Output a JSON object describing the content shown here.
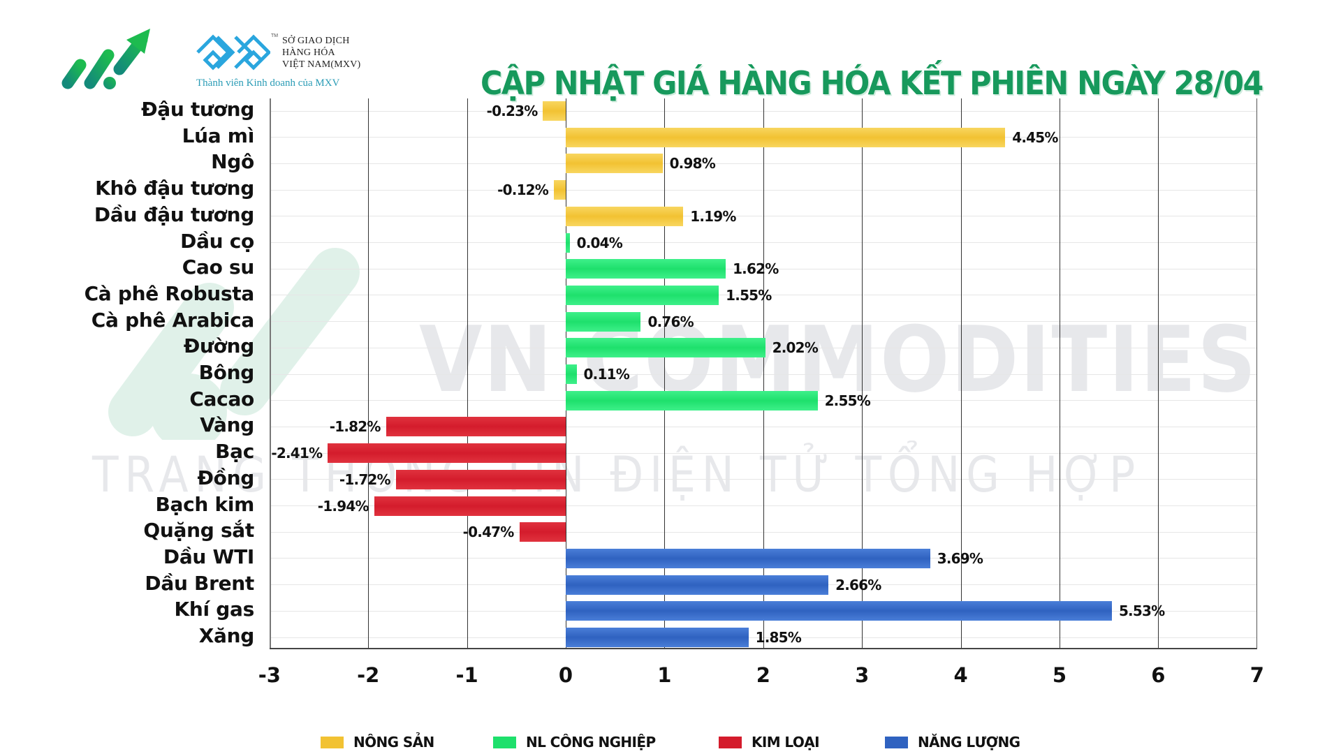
{
  "header": {
    "title": "CẬP NHẬT GIÁ HÀNG HÓA KẾT PHIÊN NGÀY 28/04",
    "title_color": "#17995c",
    "logo_left": "growth-arrow-logo",
    "mxv": {
      "line1": "SỞ GIAO DỊCH",
      "line2": "HÀNG HÓA",
      "line3": "VIỆT NAM(MXV)",
      "tm": "TM",
      "subtitle": "Thành viên Kinh doanh của MXV"
    }
  },
  "watermark": {
    "line1": "VN COMMODITIES",
    "line2": "TRANG THÔNG TIN ĐIỆN TỬ TỔNG HỢP"
  },
  "legend": [
    {
      "label": "NÔNG SẢN",
      "color": "#f2c232"
    },
    {
      "label": "NL CÔNG NGHIỆP",
      "color": "#1ee06c"
    },
    {
      "label": "KIM LOẠI",
      "color": "#d41c2c"
    },
    {
      "label": "NĂNG LƯỢNG",
      "color": "#2f62c0"
    }
  ],
  "chart_data": {
    "type": "bar",
    "orientation": "horizontal",
    "title": "CẬP NHẬT GIÁ HÀNG HÓA KẾT PHIÊN NGÀY 28/04",
    "xlabel": "",
    "ylabel": "",
    "xlim": [
      -3,
      7
    ],
    "xticks": [
      "-3",
      "-2",
      "-1",
      "0",
      "1",
      "2",
      "3",
      "4",
      "5",
      "6",
      "7"
    ],
    "grid": {
      "vertical": true,
      "horizontal": true
    },
    "legend_position": "bottom",
    "categories": [
      "Đậu tương",
      "Lúa mì",
      "Ngô",
      "Khô đậu tương",
      "Dầu đậu tương",
      "Dầu cọ",
      "Cao su",
      "Cà phê Robusta",
      "Cà phê Arabica",
      "Đường",
      "Bông",
      "Cacao",
      "Vàng",
      "Bạc",
      "Đồng",
      "Bạch kim",
      "Quặng sắt",
      "Dầu WTI",
      "Dầu Brent",
      "Khí gas",
      "Xăng"
    ],
    "values": [
      -0.23,
      4.45,
      0.98,
      -0.12,
      1.19,
      0.04,
      1.62,
      1.55,
      0.76,
      2.02,
      0.11,
      2.55,
      -1.82,
      -2.41,
      -1.72,
      -1.94,
      -0.47,
      3.69,
      2.66,
      5.53,
      1.85
    ],
    "labels": [
      "-0.23%",
      "4.45%",
      "0.98%",
      "-0.12%",
      "1.19%",
      "0.04%",
      "1.62%",
      "1.55%",
      "0.76%",
      "2.02%",
      "0.11%",
      "2.55%",
      "-1.82%",
      "-2.41%",
      "-1.72%",
      "-1.94%",
      "-0.47%",
      "3.69%",
      "2.66%",
      "5.53%",
      "1.85%"
    ],
    "groups": [
      0,
      0,
      0,
      0,
      0,
      1,
      1,
      1,
      1,
      1,
      1,
      1,
      2,
      2,
      2,
      2,
      2,
      3,
      3,
      3,
      3
    ],
    "series": [
      {
        "name": "NÔNG SẢN",
        "color": "#f2c232",
        "items": {
          "Đậu tương": -0.23,
          "Lúa mì": 4.45,
          "Ngô": 0.98,
          "Khô đậu tương": -0.12,
          "Dầu đậu tương": 1.19
        }
      },
      {
        "name": "NL CÔNG NGHIỆP",
        "color": "#1ee06c",
        "items": {
          "Dầu cọ": 0.04,
          "Cao su": 1.62,
          "Cà phê Robusta": 1.55,
          "Cà phê Arabica": 0.76,
          "Đường": 2.02,
          "Bông": 0.11,
          "Cacao": 2.55
        }
      },
      {
        "name": "KIM LOẠI",
        "color": "#d41c2c",
        "items": {
          "Vàng": -1.82,
          "Bạc": -2.41,
          "Đồng": -1.72,
          "Bạch kim": -1.94,
          "Quặng sắt": -0.47
        }
      },
      {
        "name": "NĂNG LƯỢNG",
        "color": "#2f62c0",
        "items": {
          "Dầu WTI": 3.69,
          "Dầu Brent": 2.66,
          "Khí gas": 5.53,
          "Xăng": 1.85
        }
      }
    ],
    "unit": "%"
  }
}
